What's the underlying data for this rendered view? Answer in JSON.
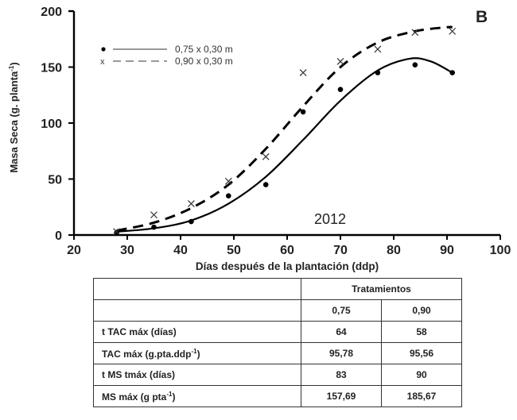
{
  "chart_data": {
    "type": "line",
    "panel_label": "B",
    "annotation": "2012",
    "title": "",
    "xlabel": "Días después de la plantación (ddp)",
    "ylabel": "Masa Seca (g. planta-1)",
    "xlim": [
      20,
      100
    ],
    "ylim": [
      0,
      200
    ],
    "xticks": [
      20,
      30,
      40,
      50,
      60,
      70,
      80,
      90,
      100
    ],
    "yticks": [
      0,
      50,
      100,
      150,
      200
    ],
    "grid": false,
    "legend_position": "upper-left",
    "x": [
      28,
      35,
      42,
      49,
      56,
      63,
      70,
      77,
      84,
      91
    ],
    "series": [
      {
        "name": "0,75 x 0,30 m",
        "marker": "dot",
        "line": "solid",
        "values": [
          2,
          7,
          12,
          35,
          45,
          110,
          130,
          145,
          152,
          145
        ],
        "fit_peak": {
          "x": 83,
          "y": 157.69
        }
      },
      {
        "name": "0,90 x 0,30 m",
        "marker": "x",
        "line": "dashed",
        "values": [
          3,
          18,
          28,
          48,
          70,
          145,
          155,
          166,
          181,
          182
        ],
        "fit_peak": {
          "x": 90,
          "y": 185.67
        }
      }
    ]
  },
  "axis": {
    "y_title_main": "Masa Seca (g. planta",
    "y_title_sup": "-1",
    "y_title_end": ")",
    "x_title": "Días después de la plantación (ddp)",
    "x_ticks": [
      "20",
      "30",
      "40",
      "50",
      "60",
      "70",
      "80",
      "90",
      "100"
    ],
    "y_ticks": [
      "0",
      "50",
      "100",
      "150",
      "200"
    ]
  },
  "legend": {
    "items": [
      {
        "marker": "•",
        "label": "0,75 x 0,30 m"
      },
      {
        "marker": "x",
        "label": "0,90 x 0,30 m"
      }
    ]
  },
  "panel_label": "B",
  "year_label": "2012",
  "table": {
    "group_header": "Tratamientos",
    "columns": [
      "0,75",
      "0,90"
    ],
    "rows": [
      {
        "label": "t TAC máx (días)",
        "label_sup": "",
        "label_end": "",
        "values": [
          "64",
          "58"
        ]
      },
      {
        "label": "TAC máx (g.pta.ddp",
        "label_sup": "-1",
        "label_end": ")",
        "values": [
          "95,78",
          "95,56"
        ]
      },
      {
        "label": "t MS tmáx (días)",
        "label_sup": "",
        "label_end": "",
        "values": [
          "83",
          "90"
        ]
      },
      {
        "label": "MS máx (g pta",
        "label_sup": "-1",
        "label_end": ")",
        "values": [
          "157,69",
          "185,67"
        ]
      }
    ]
  }
}
